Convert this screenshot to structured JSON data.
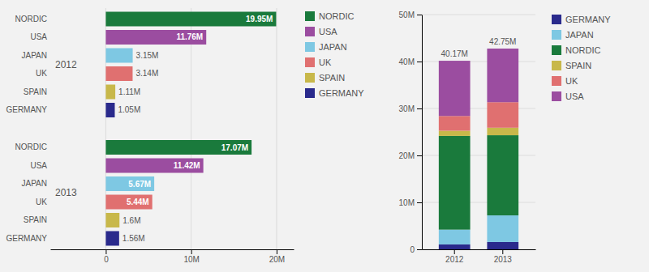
{
  "chart_data": [
    {
      "type": "bar",
      "orientation": "horizontal",
      "categories": [
        "NORDIC",
        "USA",
        "JAPAN",
        "UK",
        "SPAIN",
        "GERMANY"
      ],
      "colors": [
        "#1a7a3c",
        "#9b4da0",
        "#7ec8e3",
        "#e07070",
        "#c8b84a",
        "#2a2a8c"
      ],
      "series": [
        {
          "name": "2012",
          "values": [
            19.95,
            11.76,
            3.15,
            3.14,
            1.11,
            1.05
          ],
          "value_labels": [
            "19.95M",
            "11.76M",
            "3.15M",
            "3.14M",
            "1.11M",
            "1.05M"
          ]
        },
        {
          "name": "2013",
          "values": [
            17.07,
            11.42,
            5.67,
            5.44,
            1.6,
            1.56
          ],
          "value_labels": [
            "17.07M",
            "11.42M",
            "5.67M",
            "5.44M",
            "1.6M",
            "1.56M"
          ]
        }
      ],
      "xlim": [
        -6.5,
        22
      ],
      "xticks": [
        0,
        {
          "value": 10,
          "label": "10M"
        },
        {
          "value": 20,
          "label": "20M"
        }
      ],
      "grid": true,
      "data_labels": true,
      "legend": "right"
    },
    {
      "type": "bar",
      "stacked": true,
      "categories": [
        "2012",
        "2013"
      ],
      "series": [
        {
          "name": "GERMANY",
          "color": "#2a2a8c",
          "values": [
            1.05,
            1.56
          ]
        },
        {
          "name": "JAPAN",
          "color": "#7ec8e3",
          "values": [
            3.15,
            5.67
          ]
        },
        {
          "name": "NORDIC",
          "color": "#1a7a3c",
          "values": [
            19.95,
            17.07
          ]
        },
        {
          "name": "SPAIN",
          "color": "#c8b84a",
          "values": [
            1.11,
            1.6
          ]
        },
        {
          "name": "UK",
          "color": "#e07070",
          "values": [
            3.14,
            5.44
          ]
        },
        {
          "name": "USA",
          "color": "#9b4da0",
          "values": [
            11.76,
            11.42
          ]
        }
      ],
      "totals": [
        40.17,
        42.75
      ],
      "total_labels": [
        "40.17M",
        "42.75M"
      ],
      "ylim": [
        0,
        50
      ],
      "yticks": [
        0,
        {
          "value": 10,
          "label": "10M"
        },
        {
          "value": 20,
          "label": "20M"
        },
        {
          "value": 30,
          "label": "30M"
        },
        {
          "value": 40,
          "label": "40M"
        },
        {
          "value": 50,
          "label": "50M"
        }
      ],
      "grid": true,
      "legend": "right"
    }
  ]
}
